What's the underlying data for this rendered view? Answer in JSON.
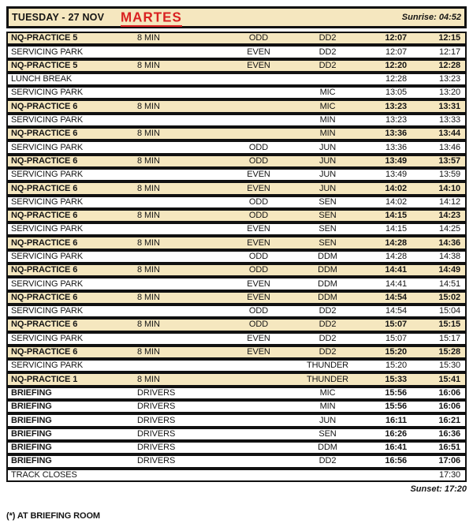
{
  "header": {
    "day": "TUESDAY - 27 NOV",
    "annotation": "MARTES",
    "sunrise": "Sunrise: 04:52"
  },
  "colors": {
    "highlight": "#F5E7BF",
    "annotation_red": "#D92121",
    "border": "#111111"
  },
  "rows": [
    {
      "name": "NQ-PRACTICE 5",
      "detail": "8 MIN",
      "parity": "ODD",
      "cls": "DD2",
      "start": "12:07",
      "end": "12:15",
      "style": "session"
    },
    {
      "name": "SERVICING PARK",
      "detail": "",
      "parity": "EVEN",
      "cls": "DD2",
      "start": "12:07",
      "end": "12:17",
      "style": "service"
    },
    {
      "name": "NQ-PRACTICE 5",
      "detail": "8 MIN",
      "parity": "EVEN",
      "cls": "DD2",
      "start": "12:20",
      "end": "12:28",
      "style": "session"
    },
    {
      "name": "LUNCH BREAK",
      "detail": "",
      "parity": "",
      "cls": "",
      "start": "12:28",
      "end": "13:23",
      "style": "service"
    },
    {
      "name": "SERVICING PARK",
      "detail": "",
      "parity": "",
      "cls": "MIC",
      "start": "13:05",
      "end": "13:20",
      "style": "service"
    },
    {
      "name": "NQ-PRACTICE 6",
      "detail": "8 MIN",
      "parity": "",
      "cls": "MIC",
      "start": "13:23",
      "end": "13:31",
      "style": "session"
    },
    {
      "name": "SERVICING PARK",
      "detail": "",
      "parity": "",
      "cls": "MIN",
      "start": "13:23",
      "end": "13:33",
      "style": "service"
    },
    {
      "name": "NQ-PRACTICE 6",
      "detail": "8 MIN",
      "parity": "",
      "cls": "MIN",
      "start": "13:36",
      "end": "13:44",
      "style": "session"
    },
    {
      "name": "SERVICING PARK",
      "detail": "",
      "parity": "ODD",
      "cls": "JUN",
      "start": "13:36",
      "end": "13:46",
      "style": "service"
    },
    {
      "name": "NQ-PRACTICE 6",
      "detail": "8 MIN",
      "parity": "ODD",
      "cls": "JUN",
      "start": "13:49",
      "end": "13:57",
      "style": "session"
    },
    {
      "name": "SERVICING PARK",
      "detail": "",
      "parity": "EVEN",
      "cls": "JUN",
      "start": "13:49",
      "end": "13:59",
      "style": "service"
    },
    {
      "name": "NQ-PRACTICE 6",
      "detail": "8 MIN",
      "parity": "EVEN",
      "cls": "JUN",
      "start": "14:02",
      "end": "14:10",
      "style": "session"
    },
    {
      "name": "SERVICING PARK",
      "detail": "",
      "parity": "ODD",
      "cls": "SEN",
      "start": "14:02",
      "end": "14:12",
      "style": "service"
    },
    {
      "name": "NQ-PRACTICE 6",
      "detail": "8 MIN",
      "parity": "ODD",
      "cls": "SEN",
      "start": "14:15",
      "end": "14:23",
      "style": "session"
    },
    {
      "name": "SERVICING PARK",
      "detail": "",
      "parity": "EVEN",
      "cls": "SEN",
      "start": "14:15",
      "end": "14:25",
      "style": "service"
    },
    {
      "name": "NQ-PRACTICE 6",
      "detail": "8 MIN",
      "parity": "EVEN",
      "cls": "SEN",
      "start": "14:28",
      "end": "14:36",
      "style": "session"
    },
    {
      "name": "SERVICING PARK",
      "detail": "",
      "parity": "ODD",
      "cls": "DDM",
      "start": "14:28",
      "end": "14:38",
      "style": "service"
    },
    {
      "name": "NQ-PRACTICE 6",
      "detail": "8 MIN",
      "parity": "ODD",
      "cls": "DDM",
      "start": "14:41",
      "end": "14:49",
      "style": "session"
    },
    {
      "name": "SERVICING PARK",
      "detail": "",
      "parity": "EVEN",
      "cls": "DDM",
      "start": "14:41",
      "end": "14:51",
      "style": "service"
    },
    {
      "name": "NQ-PRACTICE 6",
      "detail": "8 MIN",
      "parity": "EVEN",
      "cls": "DDM",
      "start": "14:54",
      "end": "15:02",
      "style": "session"
    },
    {
      "name": "SERVICING PARK",
      "detail": "",
      "parity": "ODD",
      "cls": "DD2",
      "start": "14:54",
      "end": "15:04",
      "style": "service"
    },
    {
      "name": "NQ-PRACTICE 6",
      "detail": "8 MIN",
      "parity": "ODD",
      "cls": "DD2",
      "start": "15:07",
      "end": "15:15",
      "style": "session"
    },
    {
      "name": "SERVICING PARK",
      "detail": "",
      "parity": "EVEN",
      "cls": "DD2",
      "start": "15:07",
      "end": "15:17",
      "style": "service"
    },
    {
      "name": "NQ-PRACTICE 6",
      "detail": "8 MIN",
      "parity": "EVEN",
      "cls": "DD2",
      "start": "15:20",
      "end": "15:28",
      "style": "session"
    },
    {
      "name": "SERVICING PARK",
      "detail": "",
      "parity": "",
      "cls": "THUNDER",
      "start": "15:20",
      "end": "15:30",
      "style": "service"
    },
    {
      "name": "NQ-PRACTICE 1",
      "detail": "8 MIN",
      "parity": "",
      "cls": "THUNDER",
      "start": "15:33",
      "end": "15:41",
      "style": "session"
    },
    {
      "name": "BRIEFING",
      "detail": "DRIVERS",
      "parity": "",
      "cls": "MIC",
      "start": "15:56",
      "end": "16:06",
      "style": "briefing"
    },
    {
      "name": "BRIEFING",
      "detail": "DRIVERS",
      "parity": "",
      "cls": "MIN",
      "start": "15:56",
      "end": "16:06",
      "style": "briefing"
    },
    {
      "name": "BRIEFING",
      "detail": "DRIVERS",
      "parity": "",
      "cls": "JUN",
      "start": "16:11",
      "end": "16:21",
      "style": "briefing"
    },
    {
      "name": "BRIEFING",
      "detail": "DRIVERS",
      "parity": "",
      "cls": "SEN",
      "start": "16:26",
      "end": "16:36",
      "style": "briefing"
    },
    {
      "name": "BRIEFING",
      "detail": "DRIVERS",
      "parity": "",
      "cls": "DDM",
      "start": "16:41",
      "end": "16:51",
      "style": "briefing"
    },
    {
      "name": "BRIEFING",
      "detail": "DRIVERS",
      "parity": "",
      "cls": "DD2",
      "start": "16:56",
      "end": "17:06",
      "style": "briefing"
    },
    {
      "name": "TRACK CLOSES",
      "detail": "",
      "parity": "",
      "cls": "",
      "start": "",
      "end": "17:30",
      "style": "service"
    }
  ],
  "footer": {
    "sunset": "Sunset: 17:20",
    "note": "(*) AT BRIEFING ROOM"
  }
}
